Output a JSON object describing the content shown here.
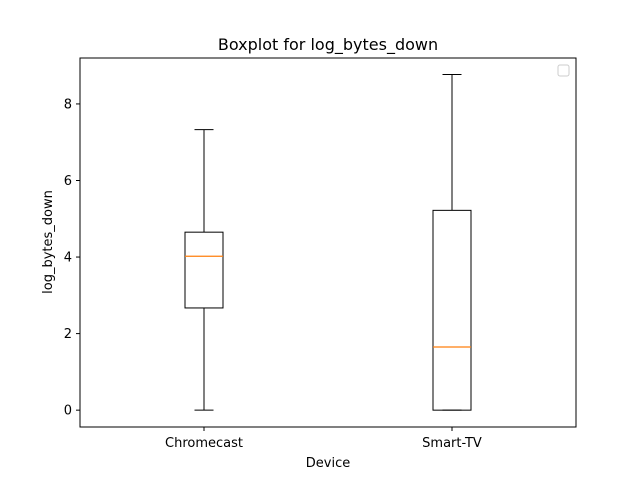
{
  "chart_data": {
    "type": "box",
    "title": "Boxplot for log_bytes_down",
    "xlabel": "Device",
    "ylabel": "log_bytes_down",
    "categories": [
      "Chromecast",
      "Smart-TV"
    ],
    "boxes": [
      {
        "min": 0.0,
        "q1": 2.67,
        "median": 4.02,
        "q3": 4.65,
        "max": 7.33
      },
      {
        "min": 0.0,
        "q1": 0.0,
        "median": 1.65,
        "q3": 5.22,
        "max": 8.77
      }
    ],
    "ylim": [
      -0.44,
      9.2
    ],
    "yticks": [
      0,
      2,
      4,
      6,
      8
    ],
    "grid": false,
    "legend": {
      "placement": "top-right",
      "entries": []
    },
    "colors": {
      "median": "#ff7f0e",
      "box": "#000000"
    }
  }
}
